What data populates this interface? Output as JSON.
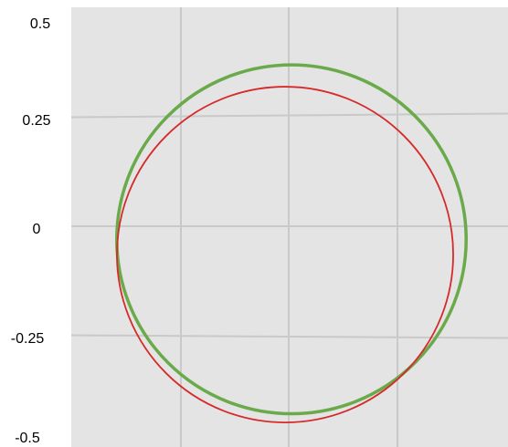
{
  "chart_data": {
    "type": "line",
    "title": "",
    "xlabel": "",
    "ylabel": "",
    "y_ticks": [
      "0.5",
      "0.25",
      "0",
      "-0.25",
      "-0.5"
    ],
    "y_tick_values": [
      0.5,
      0.25,
      0,
      -0.25,
      -0.5
    ],
    "ylim": [
      -0.5,
      0.5
    ],
    "xlim": [
      -0.5,
      0.5
    ],
    "grid": true,
    "background": "#e4e4e4",
    "gridline_color": "#c9c9c9",
    "series": [
      {
        "shape": "circle",
        "color": "#6aaa4b",
        "center": [
          0.0,
          -0.03
        ],
        "radius": 0.4
      },
      {
        "shape": "circle",
        "color": "#d62a2a",
        "center": [
          0.0,
          -0.065
        ],
        "radius": 0.385
      }
    ]
  }
}
